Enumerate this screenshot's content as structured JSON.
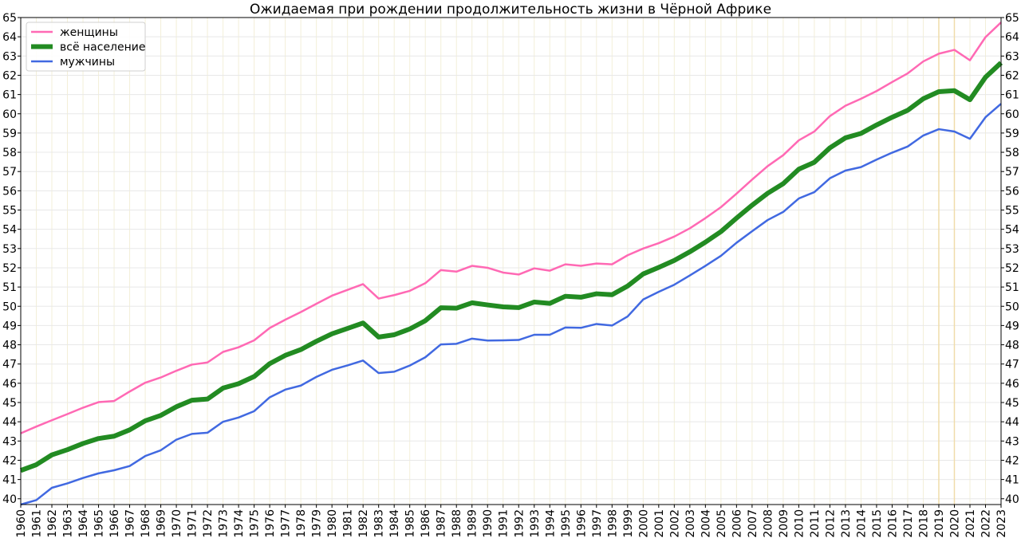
{
  "chart_data": {
    "type": "line",
    "title": "Ожидаемая при рождении продолжительность жизни в Чёрной Африке",
    "xlabel": "",
    "ylabel": "",
    "xlim": [
      1960,
      2023
    ],
    "ylim": [
      39.7,
      65
    ],
    "y_ticks": [
      40,
      41,
      42,
      43,
      44,
      45,
      46,
      47,
      48,
      49,
      50,
      51,
      52,
      53,
      54,
      55,
      56,
      57,
      58,
      59,
      60,
      61,
      62,
      63,
      64,
      65
    ],
    "grid": true,
    "highlighted_years": [
      2019,
      2020
    ],
    "legend_position": "top-left",
    "x": [
      1960,
      1961,
      1962,
      1963,
      1964,
      1965,
      1966,
      1967,
      1968,
      1969,
      1970,
      1971,
      1972,
      1973,
      1974,
      1975,
      1976,
      1977,
      1978,
      1979,
      1980,
      1981,
      1982,
      1983,
      1984,
      1985,
      1986,
      1987,
      1988,
      1989,
      1990,
      1991,
      1992,
      1993,
      1994,
      1995,
      1996,
      1997,
      1998,
      1999,
      2000,
      2001,
      2002,
      2003,
      2004,
      2005,
      2006,
      2007,
      2008,
      2009,
      2010,
      2011,
      2012,
      2013,
      2014,
      2015,
      2016,
      2017,
      2018,
      2019,
      2020,
      2021,
      2022,
      2023
    ],
    "series": [
      {
        "name": "женщины",
        "color": "#ff69b4",
        "width": 2.5,
        "values": [
          43.4,
          43.75,
          44.08,
          44.4,
          44.73,
          45.02,
          45.08,
          45.57,
          46.03,
          46.3,
          46.65,
          46.97,
          47.08,
          47.63,
          47.87,
          48.23,
          48.87,
          49.3,
          49.7,
          50.13,
          50.55,
          50.85,
          51.15,
          50.4,
          50.58,
          50.8,
          51.2,
          51.88,
          51.8,
          52.1,
          52.0,
          51.75,
          51.65,
          51.97,
          51.85,
          52.18,
          52.1,
          52.22,
          52.18,
          52.65,
          53.0,
          53.28,
          53.62,
          54.05,
          54.58,
          55.15,
          55.85,
          56.58,
          57.28,
          57.85,
          58.62,
          59.08,
          59.88,
          60.42,
          60.78,
          61.18,
          61.65,
          62.1,
          62.72,
          63.12,
          63.32,
          62.78,
          63.98,
          64.75
        ]
      },
      {
        "name": "всё население",
        "color": "#228b22",
        "width": 6,
        "values": [
          41.47,
          41.77,
          42.28,
          42.55,
          42.87,
          43.13,
          43.25,
          43.58,
          44.05,
          44.33,
          44.78,
          45.12,
          45.18,
          45.75,
          45.98,
          46.35,
          47.02,
          47.45,
          47.75,
          48.18,
          48.57,
          48.85,
          49.13,
          48.4,
          48.52,
          48.82,
          49.25,
          49.92,
          49.9,
          50.18,
          50.07,
          49.97,
          49.93,
          50.22,
          50.15,
          50.52,
          50.47,
          50.65,
          50.6,
          51.05,
          51.68,
          52.02,
          52.38,
          52.83,
          53.33,
          53.88,
          54.58,
          55.25,
          55.87,
          56.37,
          57.12,
          57.48,
          58.23,
          58.75,
          58.98,
          59.42,
          59.82,
          60.18,
          60.78,
          61.15,
          61.2,
          60.73,
          61.9,
          62.65
        ]
      },
      {
        "name": "мужчины",
        "color": "#4169e1",
        "width": 2.5,
        "values": [
          39.7,
          39.93,
          40.57,
          40.8,
          41.08,
          41.32,
          41.48,
          41.7,
          42.22,
          42.52,
          43.07,
          43.37,
          43.43,
          44.0,
          44.22,
          44.55,
          45.27,
          45.67,
          45.88,
          46.33,
          46.7,
          46.93,
          47.18,
          46.53,
          46.6,
          46.92,
          47.35,
          48.02,
          48.05,
          48.32,
          48.22,
          48.23,
          48.25,
          48.52,
          48.52,
          48.9,
          48.88,
          49.08,
          49.0,
          49.47,
          50.35,
          50.75,
          51.12,
          51.6,
          52.1,
          52.62,
          53.3,
          53.9,
          54.48,
          54.9,
          55.6,
          55.93,
          56.65,
          57.05,
          57.23,
          57.62,
          57.98,
          58.3,
          58.87,
          59.2,
          59.08,
          58.7,
          59.82,
          60.52
        ]
      }
    ]
  }
}
